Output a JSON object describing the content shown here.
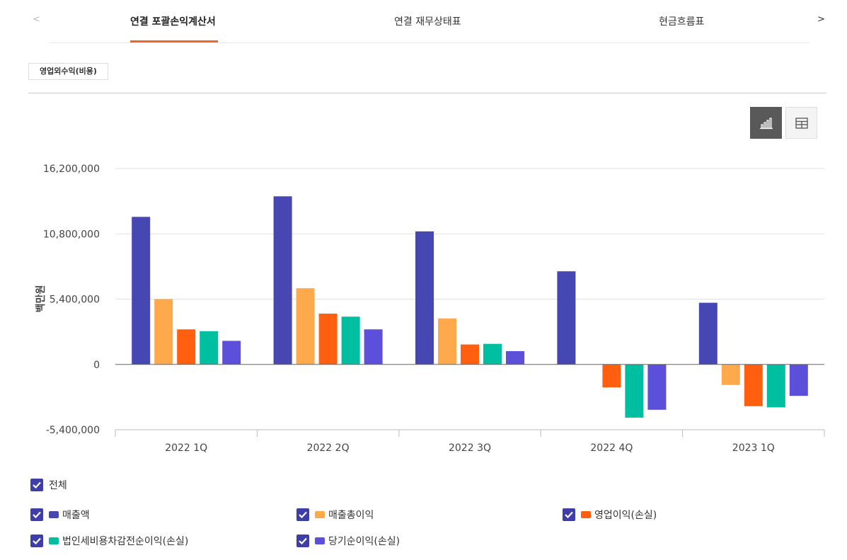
{
  "tabs": {
    "prev": "<",
    "next": ">",
    "items": [
      "연결 포괄손익계산서",
      "연결 재무상태표",
      "현금흐름표"
    ]
  },
  "subtab": "영업외수익(비용)",
  "view_buttons": {
    "chart": "chart-view",
    "table": "table-view"
  },
  "legend": {
    "all_label": "전체",
    "items": [
      {
        "label": "매출액",
        "color": "#4747b3"
      },
      {
        "label": "매출총이익",
        "color": "#ffa94d"
      },
      {
        "label": "영업이익(손실)",
        "color": "#ff5f0f"
      },
      {
        "label": "법인세비용차감전순이익(손실)",
        "color": "#00bfa0"
      },
      {
        "label": "당기순이익(손실)",
        "color": "#5c4fd9"
      }
    ]
  },
  "chart_data": {
    "type": "bar",
    "ylabel": "백만원",
    "ylim": [
      -5400000,
      16200000
    ],
    "yticks": [
      16200000,
      10800000,
      5400000,
      0,
      -5400000
    ],
    "ytick_labels": [
      "16,200,000",
      "10,800,000",
      "5,400,000",
      "0",
      "-5,400,000"
    ],
    "categories": [
      "2022 1Q",
      "2022 2Q",
      "2022 3Q",
      "2022 4Q",
      "2023 1Q"
    ],
    "series": [
      {
        "name": "매출액",
        "color": "#4747b3",
        "values": [
          12200000,
          13900000,
          11000000,
          7700000,
          5100000
        ]
      },
      {
        "name": "매출총이익",
        "color": "#ffa94d",
        "values": [
          5400000,
          6300000,
          3800000,
          0,
          -1700000
        ]
      },
      {
        "name": "영업이익(손실)",
        "color": "#ff5f0f",
        "values": [
          2900000,
          4200000,
          1650000,
          -1900000,
          -3450000
        ]
      },
      {
        "name": "법인세비용차감전순이익(손실)",
        "color": "#00bfa0",
        "values": [
          2750000,
          3950000,
          1700000,
          -4400000,
          -3550000
        ]
      },
      {
        "name": "당기순이익(손실)",
        "color": "#5c4fd9",
        "values": [
          1950000,
          2900000,
          1100000,
          -3750000,
          -2600000
        ]
      }
    ]
  }
}
